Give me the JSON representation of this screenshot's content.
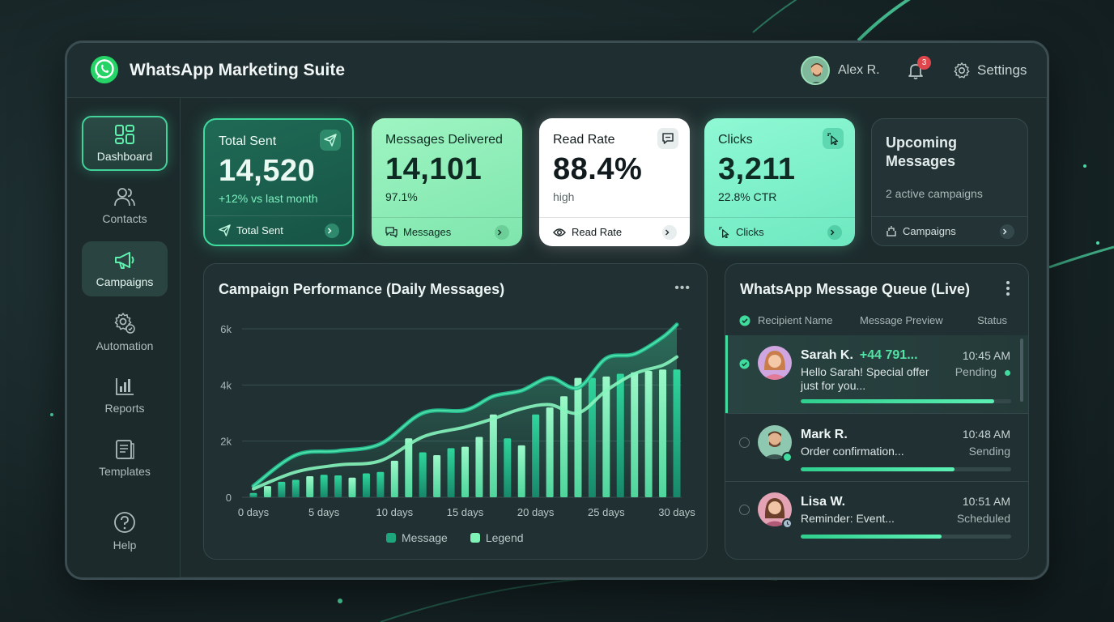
{
  "app": {
    "title": "WhatsApp Marketing Suite"
  },
  "header": {
    "user_name": "Alex R.",
    "notification_count": "3",
    "settings_label": "Settings"
  },
  "sidebar": {
    "items": [
      {
        "label": "Dashboard",
        "icon": "dashboard-icon"
      },
      {
        "label": "Contacts",
        "icon": "contacts-icon"
      },
      {
        "label": "Campaigns",
        "icon": "megaphone-icon"
      },
      {
        "label": "Automation",
        "icon": "automation-gear-icon"
      },
      {
        "label": "Reports",
        "icon": "reports-icon"
      },
      {
        "label": "Templates",
        "icon": "templates-icon"
      },
      {
        "label": "Help",
        "icon": "help-icon"
      }
    ]
  },
  "cards": {
    "sent": {
      "title": "Total Sent",
      "value": "14,520",
      "sub": "+12% vs last month",
      "footer": "Total Sent"
    },
    "delivered": {
      "title": "Messages Delivered",
      "value": "14,101",
      "sub": "97.1%",
      "footer": "Messages"
    },
    "read": {
      "title": "Read Rate",
      "value": "88.4%",
      "sub": "high",
      "footer": "Read Rate"
    },
    "clicks": {
      "title": "Clicks",
      "value": "3,211",
      "sub": "22.8% CTR",
      "footer": "Clicks"
    },
    "upcoming": {
      "title": "Upcoming Messages",
      "sub": "2 active campaigns",
      "footer": "Campaigns"
    }
  },
  "chart_panel": {
    "title": "Campaign Performance (Daily Messages)"
  },
  "chart_data": {
    "type": "bar",
    "title": "Campaign Performance (Daily Messages)",
    "x_tick_labels": [
      "0 days",
      "5 days",
      "10 days",
      "15 days",
      "20 days",
      "25 days",
      "30 days"
    ],
    "y_tick_labels": [
      "0",
      "2k",
      "4k",
      "6k"
    ],
    "ylim": [
      0,
      6000
    ],
    "xlim": [
      0,
      30
    ],
    "grid": true,
    "legend_position": "bottom",
    "series": [
      {
        "name": "Message",
        "type": "bar",
        "x": [
          0,
          1,
          2,
          3,
          4,
          5,
          6,
          7,
          8,
          9,
          10,
          11,
          12,
          13,
          14,
          15,
          16,
          17,
          18,
          19,
          20,
          21,
          22,
          23,
          24,
          25,
          26,
          27,
          28,
          29,
          30
        ],
        "values": [
          150,
          400,
          550,
          620,
          750,
          800,
          780,
          700,
          850,
          900,
          1300,
          2100,
          1600,
          1500,
          1750,
          1800,
          2150,
          2950,
          2100,
          1850,
          2950,
          3200,
          3600,
          4250,
          4250,
          4300,
          4400,
          4450,
          4500,
          4550,
          4550
        ]
      },
      {
        "name": "Legend",
        "type": "bar",
        "x": [
          0,
          1,
          2,
          3,
          4,
          5,
          6,
          7,
          8,
          9,
          10,
          11,
          12,
          13,
          14,
          15,
          16,
          17,
          18,
          19,
          20,
          21,
          22,
          23,
          24,
          25,
          26,
          27,
          28,
          29,
          30
        ],
        "values": [
          150,
          400,
          550,
          620,
          750,
          800,
          780,
          700,
          850,
          900,
          1300,
          2100,
          1600,
          1500,
          1750,
          1800,
          2150,
          2950,
          2100,
          1850,
          2950,
          3200,
          3600,
          4250,
          4250,
          4300,
          4400,
          4450,
          4500,
          4550,
          4550
        ]
      },
      {
        "type": "line",
        "x": [
          0,
          3,
          6,
          9,
          12,
          15,
          17,
          19,
          21,
          23,
          25,
          27,
          29,
          30
        ],
        "values": [
          400,
          1500,
          1650,
          1900,
          3000,
          3100,
          3600,
          3800,
          4250,
          3900,
          4950,
          5100,
          5700,
          6150
        ]
      },
      {
        "type": "line",
        "x": [
          0,
          3,
          6,
          9,
          12,
          15,
          17,
          19,
          21,
          23,
          25,
          27,
          29,
          30
        ],
        "values": [
          300,
          900,
          1150,
          1300,
          2150,
          2500,
          2800,
          3150,
          3300,
          3000,
          3800,
          4400,
          4700,
          5000
        ]
      }
    ],
    "colors": {
      "bar_dark": "#1fa57c",
      "bar_light": "#7ff2b7",
      "line_dark": "#23b98f",
      "line_light": "#86f5bd"
    }
  },
  "queue": {
    "title": "WhatsApp Message Queue (Live)",
    "columns": [
      "Recipient Name",
      "Message Preview",
      "Status"
    ],
    "rows": [
      {
        "name": "Sarah K.",
        "phone": "+44 791...",
        "message": "Hello Sarah! Special offer just for you...",
        "time": "10:45 AM",
        "status": "Pending",
        "progress": 0.92,
        "checked": true
      },
      {
        "name": "Mark R.",
        "message": "Order confirmation...",
        "time": "10:48 AM",
        "status": "Sending",
        "progress": 0.73,
        "checked": false
      },
      {
        "name": "Lisa W.",
        "message": "Reminder: Event...",
        "time": "10:51 AM",
        "status": "Scheduled",
        "progress": 0.67,
        "checked": false
      }
    ]
  },
  "colors": {
    "accent": "#3fdc9d",
    "brand_whatsapp": "#25d366",
    "badge": "#e0474d"
  }
}
